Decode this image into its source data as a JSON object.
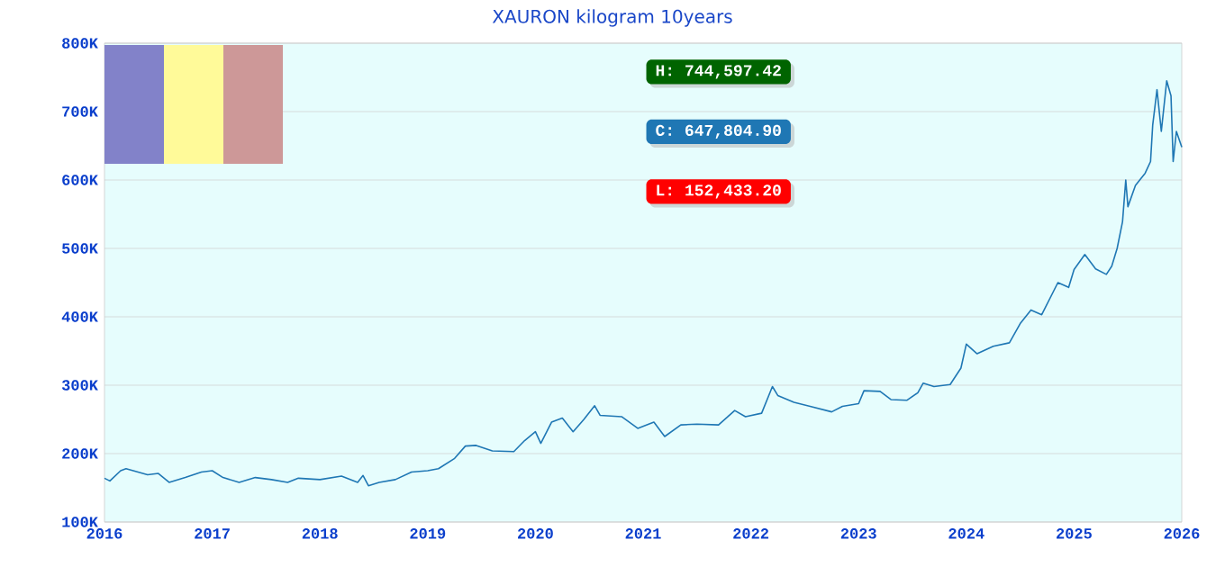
{
  "chart_data": {
    "type": "line",
    "title": "XAURON kilogram  10years",
    "x": [
      2016.0,
      2016.05,
      2016.15,
      2016.2,
      2016.4,
      2016.5,
      2016.6,
      2016.75,
      2016.9,
      2017.0,
      2017.1,
      2017.25,
      2017.4,
      2017.55,
      2017.7,
      2017.8,
      2018.0,
      2018.2,
      2018.35,
      2018.4,
      2018.45,
      2018.55,
      2018.7,
      2018.85,
      2019.0,
      2019.1,
      2019.25,
      2019.35,
      2019.45,
      2019.6,
      2019.8,
      2019.9,
      2020.0,
      2020.05,
      2020.15,
      2020.25,
      2020.35,
      2020.45,
      2020.55,
      2020.6,
      2020.8,
      2020.95,
      2021.1,
      2021.2,
      2021.35,
      2021.5,
      2021.7,
      2021.85,
      2021.95,
      2022.1,
      2022.2,
      2022.25,
      2022.4,
      2022.55,
      2022.65,
      2022.75,
      2022.85,
      2023.0,
      2023.05,
      2023.2,
      2023.3,
      2023.45,
      2023.55,
      2023.6,
      2023.7,
      2023.85,
      2023.95,
      2024.0,
      2024.1,
      2024.25,
      2024.4,
      2024.5,
      2024.6,
      2024.7,
      2024.85,
      2024.95,
      2025.0,
      2025.1,
      2025.2,
      2025.3,
      2025.35,
      2025.4,
      2025.45,
      2025.48,
      2025.5,
      2025.57,
      2025.66,
      2025.71,
      2025.73,
      2025.77,
      2025.81,
      2025.86,
      2025.9,
      2025.92,
      2025.95,
      2026.0
    ],
    "series": [
      {
        "color": "#1f77b4",
        "values": [
          164000,
          160000,
          175000,
          178000,
          169000,
          171000,
          158000,
          165000,
          173000,
          175000,
          165000,
          158000,
          165000,
          162000,
          158000,
          164000,
          162000,
          167000,
          158000,
          168000,
          153000,
          158000,
          162000,
          173000,
          175000,
          178000,
          193000,
          211000,
          212000,
          204000,
          203000,
          219000,
          232000,
          215000,
          246000,
          252000,
          232000,
          250000,
          270000,
          256000,
          254000,
          237000,
          246000,
          225000,
          242000,
          243000,
          242000,
          263000,
          254000,
          259000,
          298000,
          285000,
          275000,
          269000,
          265000,
          261000,
          269000,
          273000,
          292000,
          291000,
          279000,
          278000,
          289000,
          303000,
          298000,
          301000,
          325000,
          360000,
          346000,
          357000,
          362000,
          390000,
          410000,
          403000,
          450000,
          443000,
          469000,
          491000,
          470000,
          462000,
          474000,
          500000,
          539000,
          600000,
          561000,
          592000,
          610000,
          627000,
          680000,
          732000,
          671000,
          745000,
          723000,
          627000,
          671000,
          648000
        ]
      }
    ],
    "xlim": [
      2016,
      2026
    ],
    "ylim": [
      100000,
      800000
    ],
    "xticks": [
      2016,
      2017,
      2018,
      2019,
      2020,
      2021,
      2022,
      2023,
      2024,
      2025,
      2026
    ],
    "yticks": [
      {
        "value": 100000,
        "label": "100K"
      },
      {
        "value": 200000,
        "label": "200K"
      },
      {
        "value": 300000,
        "label": "300K"
      },
      {
        "value": 400000,
        "label": "400K"
      },
      {
        "value": 500000,
        "label": "500K"
      },
      {
        "value": 600000,
        "label": "600K"
      },
      {
        "value": 700000,
        "label": "700K"
      },
      {
        "value": 800000,
        "label": "800K"
      }
    ],
    "grid": "y",
    "annotations": [
      "H: 744,597.42",
      "C: 647,804.90",
      "L: 152,433.20"
    ]
  }
}
